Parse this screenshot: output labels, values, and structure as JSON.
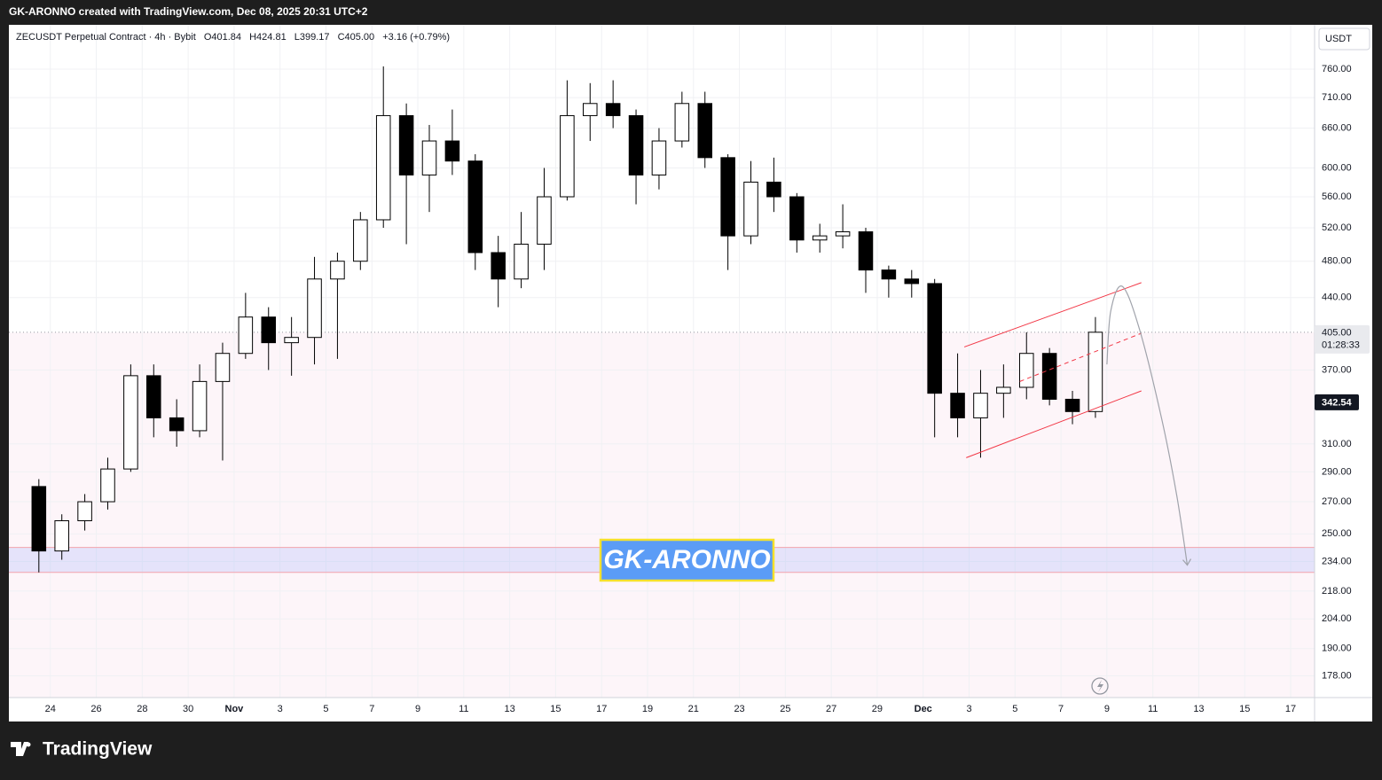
{
  "header": "GK-ARONNO created with TradingView.com, Dec 08, 2025 20:31 UTC+2",
  "footer": "TradingView",
  "chart_data": {
    "type": "candlestick",
    "legend": {
      "symbol": "ZECUSDT Perpetual Contract · 4h · Bybit",
      "ohlc": [
        "O401.84",
        "H424.81",
        "L399.17",
        "C405.00"
      ],
      "change": "+3.16 (+0.79%)"
    },
    "currency": "USDT",
    "watermark": "GK-ARONNO",
    "log_scale": true,
    "grid": true,
    "up_color": "#ffffff",
    "down_color": "#000000",
    "wick_color": "#000000",
    "x": [
      "2025-10-23",
      "2025-10-24",
      "2025-10-25",
      "2025-10-26",
      "2025-10-27",
      "2025-10-28",
      "2025-10-29",
      "2025-10-30",
      "2025-10-31",
      "2025-11-01",
      "2025-11-02",
      "2025-11-03",
      "2025-11-04",
      "2025-11-05",
      "2025-11-06",
      "2025-11-07",
      "2025-11-08",
      "2025-11-09",
      "2025-11-10",
      "2025-11-11",
      "2025-11-12",
      "2025-11-13",
      "2025-11-14",
      "2025-11-15",
      "2025-11-16",
      "2025-11-17",
      "2025-11-18",
      "2025-11-19",
      "2025-11-20",
      "2025-11-21",
      "2025-11-22",
      "2025-11-23",
      "2025-11-24",
      "2025-11-25",
      "2025-11-26",
      "2025-11-27",
      "2025-11-28",
      "2025-11-29",
      "2025-11-30",
      "2025-12-01",
      "2025-12-02",
      "2025-12-03",
      "2025-12-04",
      "2025-12-05",
      "2025-12-06",
      "2025-12-07",
      "2025-12-08"
    ],
    "open": [
      280,
      240,
      258,
      270,
      292,
      365,
      330,
      320,
      360,
      385,
      420,
      395,
      400,
      460,
      480,
      530,
      680,
      590,
      640,
      610,
      490,
      460,
      500,
      560,
      680,
      700,
      680,
      590,
      640,
      700,
      615,
      510,
      580,
      560,
      505,
      510,
      515,
      470,
      460,
      455,
      350,
      330,
      350,
      355,
      385,
      345,
      335
    ],
    "high": [
      285,
      262,
      275,
      300,
      375,
      375,
      345,
      375,
      395,
      445,
      430,
      420,
      485,
      490,
      540,
      765,
      700,
      665,
      690,
      620,
      510,
      540,
      600,
      740,
      735,
      740,
      690,
      660,
      720,
      720,
      620,
      610,
      615,
      565,
      525,
      550,
      520,
      475,
      470,
      460,
      385,
      370,
      375,
      405,
      390,
      352,
      420
    ],
    "low": [
      228,
      235,
      252,
      265,
      290,
      315,
      308,
      315,
      298,
      380,
      370,
      365,
      375,
      380,
      470,
      520,
      500,
      540,
      590,
      470,
      430,
      450,
      470,
      555,
      640,
      660,
      550,
      570,
      630,
      600,
      470,
      500,
      540,
      490,
      490,
      495,
      445,
      440,
      440,
      315,
      315,
      300,
      330,
      345,
      340,
      325,
      330
    ],
    "close": [
      240,
      258,
      270,
      292,
      365,
      330,
      320,
      360,
      385,
      420,
      395,
      400,
      460,
      480,
      530,
      680,
      590,
      640,
      610,
      490,
      460,
      500,
      560,
      680,
      700,
      680,
      590,
      640,
      700,
      615,
      510,
      580,
      560,
      505,
      510,
      515,
      470,
      460,
      455,
      350,
      330,
      350,
      355,
      385,
      345,
      335,
      405
    ],
    "xlim": [
      "2025-10-22T04:40",
      "2025-12-18T01:00"
    ],
    "ylim": [
      169,
      845
    ],
    "xticks": [
      {
        "value": "2025-10-24",
        "label": "24"
      },
      {
        "value": "2025-10-26",
        "label": "26"
      },
      {
        "value": "2025-10-28",
        "label": "28"
      },
      {
        "value": "2025-10-30",
        "label": "30"
      },
      {
        "value": "2025-11-01",
        "label": "Nov"
      },
      {
        "value": "2025-11-03",
        "label": "3"
      },
      {
        "value": "2025-11-05",
        "label": "5"
      },
      {
        "value": "2025-11-07",
        "label": "7"
      },
      {
        "value": "2025-11-09",
        "label": "9"
      },
      {
        "value": "2025-11-11",
        "label": "11"
      },
      {
        "value": "2025-11-13",
        "label": "13"
      },
      {
        "value": "2025-11-15",
        "label": "15"
      },
      {
        "value": "2025-11-17",
        "label": "17"
      },
      {
        "value": "2025-11-19",
        "label": "19"
      },
      {
        "value": "2025-11-21",
        "label": "21"
      },
      {
        "value": "2025-11-23",
        "label": "23"
      },
      {
        "value": "2025-11-25",
        "label": "25"
      },
      {
        "value": "2025-11-27",
        "label": "27"
      },
      {
        "value": "2025-11-29",
        "label": "29"
      },
      {
        "value": "2025-12-01",
        "label": "Dec"
      },
      {
        "value": "2025-12-03",
        "label": "3"
      },
      {
        "value": "2025-12-05",
        "label": "5"
      },
      {
        "value": "2025-12-07",
        "label": "7"
      },
      {
        "value": "2025-12-09",
        "label": "9"
      },
      {
        "value": "2025-12-11",
        "label": "11"
      },
      {
        "value": "2025-12-13",
        "label": "13"
      },
      {
        "value": "2025-12-15",
        "label": "15"
      },
      {
        "value": "2025-12-17",
        "label": "17"
      }
    ],
    "yticks": [
      {
        "value": 760,
        "label": "760.00"
      },
      {
        "value": 710,
        "label": "710.00"
      },
      {
        "value": 660,
        "label": "660.00"
      },
      {
        "value": 600,
        "label": "600.00"
      },
      {
        "value": 560,
        "label": "560.00"
      },
      {
        "value": 520,
        "label": "520.00"
      },
      {
        "value": 480,
        "label": "480.00"
      },
      {
        "value": 440,
        "label": "440.00"
      },
      {
        "value": 370,
        "label": "370.00"
      },
      {
        "value": 310,
        "label": "310.00"
      },
      {
        "value": 290,
        "label": "290.00"
      },
      {
        "value": 270,
        "label": "270.00"
      },
      {
        "value": 250,
        "label": "250.00"
      },
      {
        "value": 234,
        "label": "234.00"
      },
      {
        "value": 218,
        "label": "218.00"
      },
      {
        "value": 204,
        "label": "204.00"
      },
      {
        "value": 190,
        "label": "190.00"
      },
      {
        "value": 178,
        "label": "178.00"
      }
    ],
    "last_price": {
      "value": 405,
      "label": "405.00",
      "countdown": "01:28:33"
    },
    "marker_price": {
      "value": 342.54,
      "label": "342.54"
    },
    "zone": [
      228,
      242
    ],
    "channel": {
      "upper": [
        {
          "x": "2025-12-02T19:00",
          "price": 391
        },
        {
          "x": "2025-12-10T12:00",
          "price": 456
        }
      ],
      "lower": [
        {
          "x": "2025-12-02T21:00",
          "price": 300
        },
        {
          "x": "2025-12-10T12:00",
          "price": 352
        }
      ],
      "middle": [
        {
          "x": "2025-12-05T05:00",
          "price": 360
        },
        {
          "x": "2025-12-10T12:00",
          "price": 404
        }
      ]
    },
    "projection": {
      "x": [
        "2025-12-09T00:00",
        "2025-12-09T04:00",
        "2025-12-09T16:00",
        "2025-12-10T10:00",
        "2025-12-11T09:00",
        "2025-12-12T01:00",
        "2025-12-12T12:00"
      ],
      "price": [
        375,
        426,
        452,
        408,
        330,
        274,
        232
      ]
    }
  }
}
